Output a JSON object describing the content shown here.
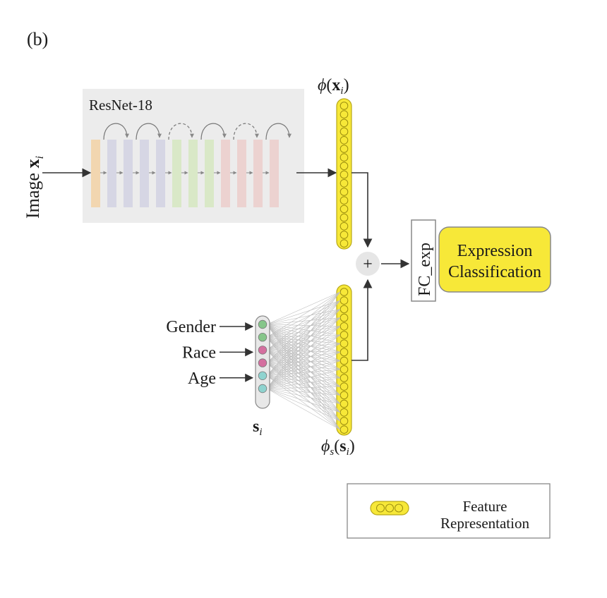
{
  "panel_label": "(b)",
  "backbone": {
    "title": "ResNet-18",
    "block_colors": [
      "#f2d6b0",
      "#d6d6e4",
      "#d6d6e4",
      "#d6d6e4",
      "#d6d6e4",
      "#d9e8c7",
      "#d9e8c7",
      "#d9e8c7",
      "#ecd2d0",
      "#ecd2d0",
      "#ecd2d0",
      "#ecd2d0"
    ]
  },
  "input_label": {
    "text": "Image ",
    "var": "x",
    "sub": "i"
  },
  "image_feature_label": {
    "fn": "ϕ",
    "var": "x",
    "sub": "i"
  },
  "sensitive_label": {
    "var": "s",
    "sub": "i"
  },
  "sensitive_feature_label": {
    "fn": "ϕ",
    "fn_sub": "s",
    "var": "s",
    "sub": "i"
  },
  "attributes": [
    {
      "label": "Gender",
      "color": "#86c68a"
    },
    {
      "label": "Race",
      "color": "#d46f9f"
    },
    {
      "label": "Age",
      "color": "#8fd3cf"
    }
  ],
  "sum_symbol": "+",
  "fc_label": "FC_exp",
  "output": {
    "line1": "Expression",
    "line2": "Classification"
  },
  "legend": {
    "line1": "Feature",
    "line2": "Representation"
  },
  "colors": {
    "feature_fill": "#f7e838",
    "feature_stroke": "#b8a818",
    "backbone_bg": "#ececec",
    "arrow": "#333333"
  }
}
